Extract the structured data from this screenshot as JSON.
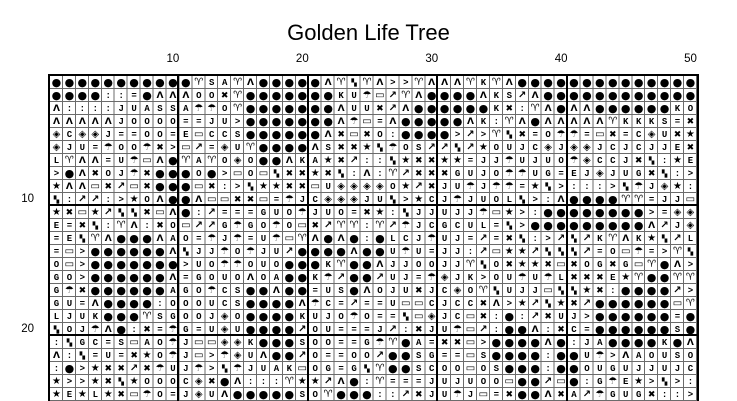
{
  "title": "Golden Life Tree",
  "colors": {
    "background": "#ffffff",
    "symbols": "#000000",
    "thin_gridline": "#6b6b6b",
    "bold_gridline": "#000000"
  },
  "chart_data": {
    "type": "table",
    "title": "Golden Life Tree",
    "columns": 50,
    "rows_count": 25,
    "x_axis": {
      "tick_labels": [
        "10",
        "20",
        "30",
        "40",
        "50"
      ],
      "tick_cols": [
        10,
        20,
        30,
        40,
        50
      ],
      "position": "top"
    },
    "y_axis": {
      "tick_labels": [
        "10",
        "20"
      ],
      "tick_rows": [
        10,
        20
      ],
      "position": "left"
    },
    "grid": "thin line every cell, bold line every 10 cells and on outer border",
    "symbol_key": {
      "●": "filled-circle",
      "Λ": "lambda-caret",
      "♈": "aries-horns",
      "✖": "heavy-x",
      "★": "filled-star",
      "◈": "diamond-in-diamond",
      "▭": "rectangle-outline",
      "☂": "umbrella",
      "↗": "arrow-north-east",
      "▚": "double-small-square",
      ":": "colon",
      "=": "equals",
      ">": "greater-than",
      "letters": "S A K U J O C E L G"
    },
    "rows": [
      "●●●●●●●●●●●♈SA♈Λ●●●●●Λ♈▚♈Λ>>♈ΛΛΛ♈K♈Λ●●●●●●●●●●●●●●",
      "●●●●::=●ΛΛΛOO✖♈●●●●●●●KU☂▭↗♈Λ●●●●ΛKS↗Λ●●●●●●●●●●●●",
      "Λ::::JUASSA☂☂O♈●●●●●●●ΛUU✖↗Λ●●●●●●K✖:♈Λ●ΛΛ●●●●●●KO",
      "ΛΛΛΛΛJOOOO==JU>●●●●●●●Λ☂▭=Λ●●●●●ΛK:♈Λ●ΛΛΛΛΛ♈KKKS=✖",
      "◈C◈◈J==OO=E▭CCS●●●●●●Λ✖▭✖O:●●●●>↗>♈▚✖=O☂☂=▭✖=C◈U✖★",
      "◈JU=☂OO☂✖>▭↗=◈U♈●●●●ΛS✖✖★▚☂OS↗↗▚↗★OUJC◈J◈◈JCJCJJE✖",
      "L♈ΛΛ=U☂▭Λ●♈A♈O◈O●●ΛKA★✖↗::▚★✖✖★★=JJ☂UJUO☂◈CCJ✖▚:★E",
      ">●Λ✖OJ☂✖●●●O●>▭O▭▚✖✖★✖▚:Λ:♈↗✖✖✖GUJO☂☂UG=EJ◈JUG✖▚:>",
      "★ΛΛ▭✖↗▭✖●●●▭✖:>▚★★✖✖▭U◈◈◈◈O★↗✖JU☂J☂☂=★▚>:::>▚☂J◈★:",
      "▚:↗↗:>★OΛ●●Λ▭▭✖✖▭=☂JC◈◈◈JU▚>★CJ☂JUOL▚>:Λ●●●●♈♈=JJ▭",
      "★✖▭★↗▚▚✖▭Λ●:↗===GUO☂JUO=✖★:▚JJUJJ☂▭★>:●●●●●●●●>=◈◈",
      "E=✖▚:♈Λ:✖O▭↗↗G☂GO☂O▭✖↗♈♈:♈↗☂JCGCUL=▚>●●●●●●●●●Λ↗J◈",
      "=E▚♈Λ●●●ΛAO=☂J☂=U☂▭♈Λ●Λ●:●LCJ☂UJ=↗=✖▚:>↗▚↗K♈ΛK★▚↗L",
      "=▭>●●●●●●Λ▚JJ☂O☂JU↗●●●●Λ●●U☂U=JJ:↗▭★★↗▚▚▚↗=O▭☂=>♈▚",
      "O▭>●●●●●●●>UO☂☂OUO●●●K♈●●ΛJJOOJJ♈▚O✖★★✖▭✖OG✖G▭♈●Λ>",
      "GO>●●●●●●Λ=GOUOΛOA●●K☂↗●●↗UJ=☂◈JK>OU☂U☂L✖✖✖E★♈●●♈♈",
      "G☂✖●●●●●●AGO☂CS●●Λ●●=US●ΛOJU✖JC◈O♈▚UJJ▭▚▚★✖:●●●●↗>",
      "GU=Λ●●●●:OOOUCS●●●●Λ☂C=↗==U▭▭CJCC✖Λ>★↗▚★✖↗●●●●●●▭♈",
      "LJUK●●●♈SGOOJ◈O●●●●KUJO☂O==▚▭◈JC▭✖:●:↗✖UJ>●●●●●●=●",
      "▚OJ☂Λ●:✖=☂G=U◈U●●●●↗OU===J↗:✖JU☂▭↗:●●Λ:✖C=●●●●●●S●",
      ":▚GC=S▭AO☂J▭▭◈◈K●●●SOO==G☂♈●A=✖✖▭>●●●●Λ●:JA●●●●K●Λ",
      "Λ:▚=U=✖★O☂J▭>☂◈UΛ●●↗O==OO↗●●SG==▭S●●●●:●●U☂>ΛAOUSO",
      ":●>★✖✖↗✖☂UJ☂>▚☂JUAK▭OG=G▚♈●●SCOO▭OS●●●:●●OUGUJJUJC",
      "★>>★✖▚★OOOC◈✖●Λ:::♈★★↗Λ●:♈===JUJUOO▭●●↗▭●:G☂E★>▚>:",
      "★E★L★✖▭☂O=J◈UΛ●●●●●SO♈●●●::↗✖JU☂J▭=✖●●Λ✖A↗☂GUG✖::>"
    ]
  }
}
